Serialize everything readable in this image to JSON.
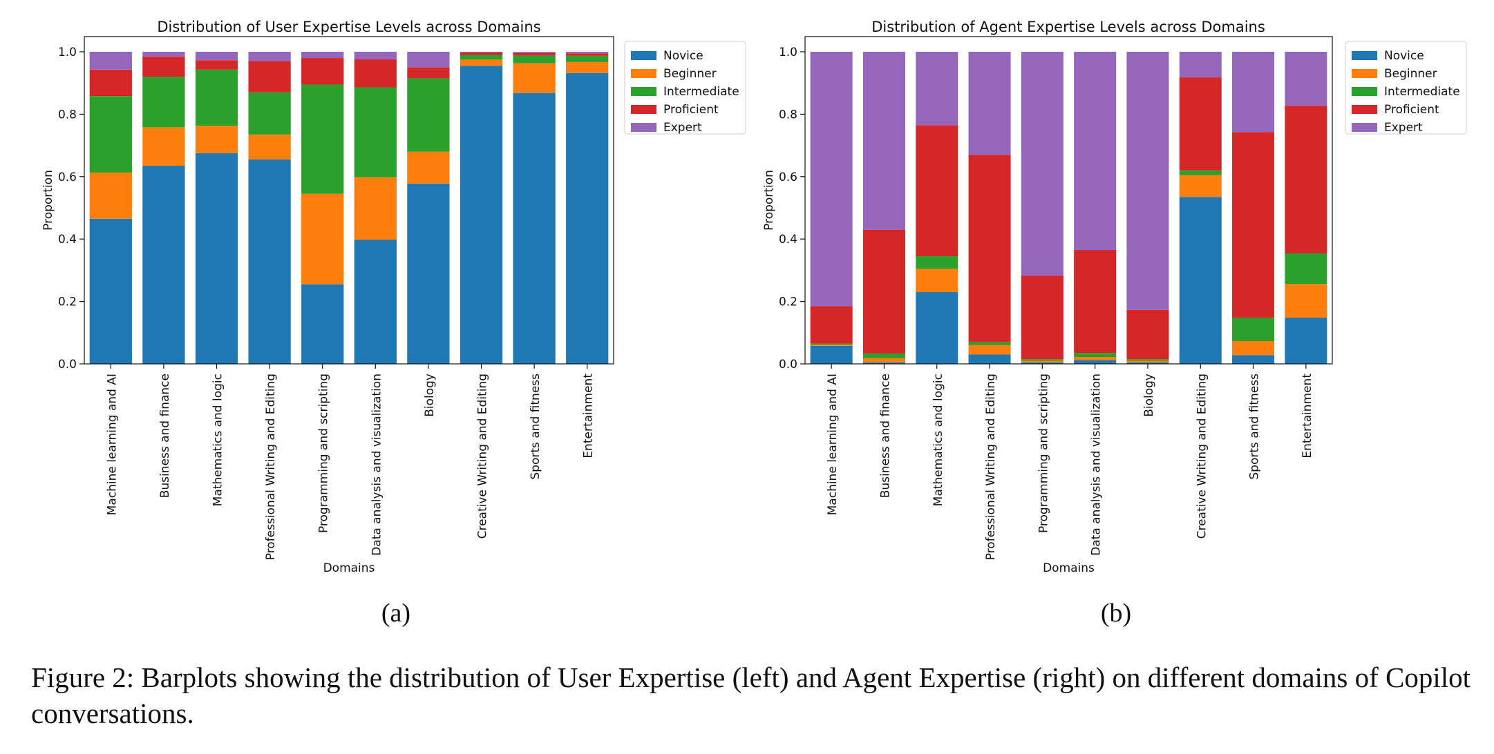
{
  "chart_data": [
    {
      "type": "bar",
      "stacked": true,
      "title": "Distribution of User Expertise Levels across Domains",
      "xlabel": "Domains",
      "ylabel": "Proportion",
      "ylim": [
        0,
        1.0
      ],
      "yticks": [
        "0.0",
        "0.2",
        "0.4",
        "0.6",
        "0.8",
        "1.0"
      ],
      "legend_position": "outside-top-right",
      "grid": false,
      "panel_label": "(a)",
      "categories": [
        "Machine learning and AI",
        "Business and finance",
        "Mathematics and logic",
        "Professional Writing and Editing",
        "Programming and scripting",
        "Data analysis and visualization",
        "Biology",
        "Creative Writing and Editing",
        "Sports and fitness",
        "Entertainment"
      ],
      "series": [
        {
          "name": "Novice",
          "color": "#1f77b4",
          "values": [
            0.465,
            0.635,
            0.675,
            0.655,
            0.255,
            0.398,
            0.578,
            0.955,
            0.868,
            0.932
          ]
        },
        {
          "name": "Beginner",
          "color": "#ff7f0e",
          "values": [
            0.148,
            0.123,
            0.088,
            0.08,
            0.29,
            0.2,
            0.102,
            0.02,
            0.095,
            0.035
          ]
        },
        {
          "name": "Intermediate",
          "color": "#2ca02c",
          "values": [
            0.245,
            0.162,
            0.18,
            0.135,
            0.35,
            0.288,
            0.235,
            0.015,
            0.025,
            0.02
          ]
        },
        {
          "name": "Proficient",
          "color": "#d62728",
          "values": [
            0.085,
            0.065,
            0.03,
            0.1,
            0.085,
            0.09,
            0.035,
            0.008,
            0.008,
            0.008
          ]
        },
        {
          "name": "Expert",
          "color": "#9467bd",
          "values": [
            0.057,
            0.015,
            0.027,
            0.03,
            0.02,
            0.024,
            0.05,
            0.002,
            0.004,
            0.005
          ]
        }
      ]
    },
    {
      "type": "bar",
      "stacked": true,
      "title": "Distribution of Agent Expertise Levels across Domains",
      "xlabel": "Domains",
      "ylabel": "Proportion",
      "ylim": [
        0,
        1.0
      ],
      "yticks": [
        "0.0",
        "0.2",
        "0.4",
        "0.6",
        "0.8",
        "1.0"
      ],
      "legend_position": "outside-top-right",
      "grid": false,
      "panel_label": "(b)",
      "categories": [
        "Machine learning and AI",
        "Business and finance",
        "Mathematics and logic",
        "Professional Writing and Editing",
        "Programming and scripting",
        "Data analysis and visualization",
        "Biology",
        "Creative Writing and Editing",
        "Sports and fitness",
        "Entertainment"
      ],
      "series": [
        {
          "name": "Novice",
          "color": "#1f77b4",
          "values": [
            0.058,
            0.005,
            0.23,
            0.03,
            0.005,
            0.012,
            0.005,
            0.535,
            0.028,
            0.148
          ]
        },
        {
          "name": "Beginner",
          "color": "#ff7f0e",
          "values": [
            0.003,
            0.013,
            0.075,
            0.03,
            0.005,
            0.01,
            0.005,
            0.07,
            0.045,
            0.108
          ]
        },
        {
          "name": "Intermediate",
          "color": "#2ca02c",
          "values": [
            0.004,
            0.015,
            0.04,
            0.01,
            0.005,
            0.013,
            0.005,
            0.015,
            0.075,
            0.098
          ]
        },
        {
          "name": "Proficient",
          "color": "#d62728",
          "values": [
            0.12,
            0.397,
            0.42,
            0.6,
            0.268,
            0.33,
            0.158,
            0.298,
            0.595,
            0.474
          ]
        },
        {
          "name": "Expert",
          "color": "#9467bd",
          "values": [
            0.815,
            0.57,
            0.235,
            0.33,
            0.717,
            0.635,
            0.827,
            0.082,
            0.257,
            0.172
          ]
        }
      ]
    }
  ],
  "caption": "Figure 2: Barplots showing the distribution of User Expertise (left) and Agent Expertise (right) on different domains of Copilot conversations."
}
